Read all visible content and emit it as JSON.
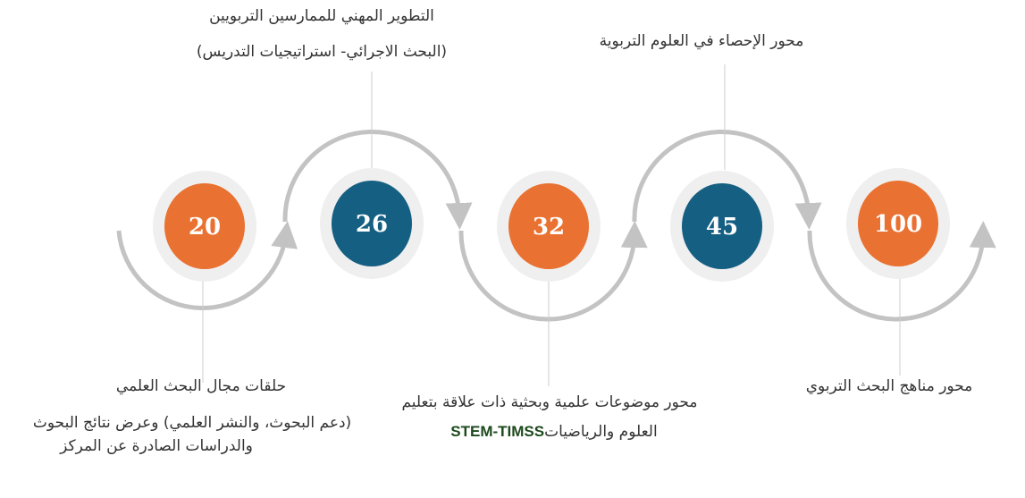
{
  "colors": {
    "orange": "#e97131",
    "blue": "#155f82",
    "ring": "#efefef",
    "arc": "#c3c3c3"
  },
  "steps": [
    {
      "value": "20",
      "color": "orange",
      "title": "حلقات مجال البحث العلمي",
      "desc1": "(دعم البحوث، والنشر العلمي) وعرض نتائج البحوث",
      "desc2": "والدراسات الصادرة عن المركز"
    },
    {
      "value": "26",
      "color": "blue",
      "title": "التطوير المهني للممارسين التربويين",
      "desc1": "(البحث الاجرائي- استراتيجيات التدريس)"
    },
    {
      "value": "32",
      "color": "orange",
      "title": "محور موضوعات علمية وبحثية ذات علاقة بتعليم",
      "desc1": "العلوم والرياضيات",
      "desc_latin": "STEM-TIMSS"
    },
    {
      "value": "45",
      "color": "blue",
      "title": "محور الإحصاء في العلوم التربوية"
    },
    {
      "value": "100",
      "color": "orange",
      "title": "محور مناهج البحث التربوي"
    }
  ]
}
